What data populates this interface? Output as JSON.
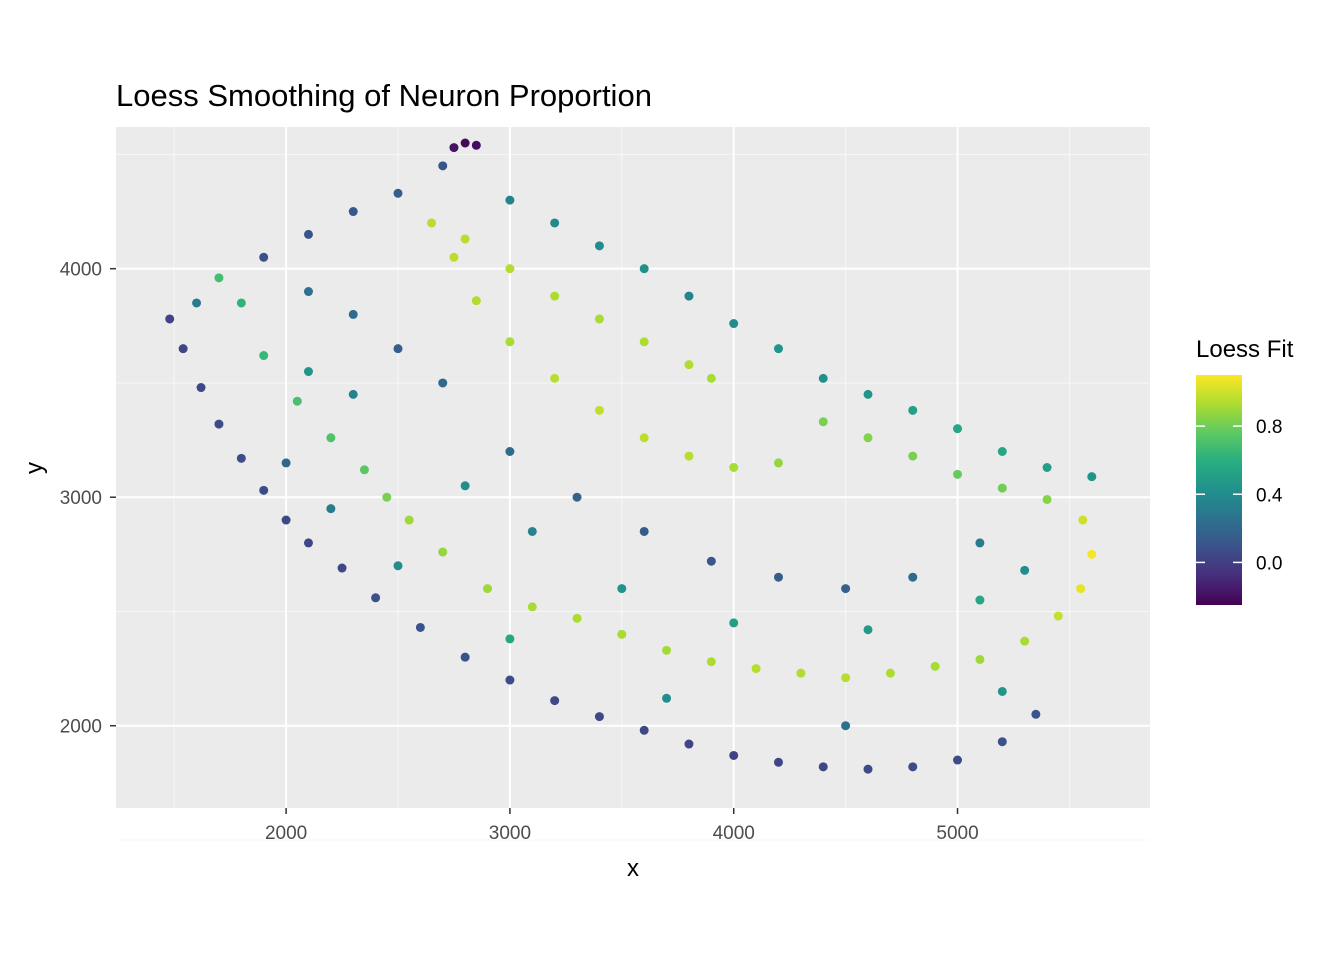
{
  "chart_data": {
    "type": "scatter",
    "title": "Loess Smoothing of Neuron Proportion",
    "xlabel": "x",
    "ylabel": "y",
    "xlim": [
      1240,
      5860
    ],
    "ylim": [
      1640,
      4620
    ],
    "x_ticks": [
      2000,
      3000,
      4000,
      5000
    ],
    "y_ticks": [
      2000,
      3000,
      4000
    ],
    "x_tick_labels": [
      "2000",
      "3000",
      "4000",
      "5000"
    ],
    "y_tick_labels": [
      "2000",
      "3000",
      "4000"
    ],
    "grid": true,
    "panel_background": "#ebebeb",
    "legend": {
      "title": "Loess Fit",
      "position": "right",
      "colormap": "viridis",
      "range": [
        -0.25,
        1.1
      ],
      "ticks": [
        0.0,
        0.4,
        0.8
      ],
      "tick_labels": [
        "0.0",
        "0.4",
        "0.8"
      ]
    },
    "series": [
      {
        "description": "approximate cell points (x, y, loess fit)",
        "points": [
          [
            1480,
            3780,
            0.02
          ],
          [
            1540,
            3650,
            0.03
          ],
          [
            1620,
            3480,
            0.04
          ],
          [
            1700,
            3320,
            0.06
          ],
          [
            1800,
            3170,
            0.07
          ],
          [
            1900,
            3030,
            0.06
          ],
          [
            2000,
            2900,
            0.05
          ],
          [
            2100,
            2800,
            0.03
          ],
          [
            2250,
            2690,
            0.04
          ],
          [
            2400,
            2560,
            0.08
          ],
          [
            2600,
            2430,
            0.1
          ],
          [
            2800,
            2300,
            0.08
          ],
          [
            3000,
            2200,
            0.06
          ],
          [
            3200,
            2110,
            0.05
          ],
          [
            3400,
            2040,
            0.05
          ],
          [
            3600,
            1980,
            0.04
          ],
          [
            3800,
            1920,
            0.03
          ],
          [
            4000,
            1870,
            0.02
          ],
          [
            4200,
            1840,
            0.03
          ],
          [
            4400,
            1820,
            0.04
          ],
          [
            4600,
            1810,
            0.05
          ],
          [
            4800,
            1820,
            0.06
          ],
          [
            5000,
            1850,
            0.07
          ],
          [
            5200,
            1930,
            0.08
          ],
          [
            5350,
            2050,
            0.1
          ],
          [
            1600,
            3850,
            0.3
          ],
          [
            1700,
            3960,
            0.68
          ],
          [
            1800,
            3850,
            0.62
          ],
          [
            1900,
            3620,
            0.65
          ],
          [
            2050,
            3420,
            0.7
          ],
          [
            2200,
            3260,
            0.72
          ],
          [
            2350,
            3120,
            0.75
          ],
          [
            2450,
            3000,
            0.82
          ],
          [
            2550,
            2900,
            0.9
          ],
          [
            2700,
            2760,
            0.88
          ],
          [
            2900,
            2600,
            0.9
          ],
          [
            3100,
            2520,
            0.92
          ],
          [
            3300,
            2470,
            0.93
          ],
          [
            3500,
            2400,
            0.92
          ],
          [
            3700,
            2330,
            0.91
          ],
          [
            3900,
            2280,
            0.93
          ],
          [
            4100,
            2250,
            0.95
          ],
          [
            4300,
            2230,
            0.94
          ],
          [
            4500,
            2210,
            0.95
          ],
          [
            4700,
            2230,
            0.93
          ],
          [
            4900,
            2260,
            0.92
          ],
          [
            5100,
            2290,
            0.9
          ],
          [
            5300,
            2370,
            0.92
          ],
          [
            5450,
            2480,
            0.98
          ],
          [
            5550,
            2600,
            1.05
          ],
          [
            5600,
            2750,
            1.08
          ],
          [
            5560,
            2900,
            1.0
          ],
          [
            5400,
            2990,
            0.85
          ],
          [
            5200,
            3040,
            0.8
          ],
          [
            5000,
            3100,
            0.78
          ],
          [
            4800,
            3180,
            0.82
          ],
          [
            4600,
            3260,
            0.84
          ],
          [
            4400,
            3330,
            0.82
          ],
          [
            4200,
            3150,
            0.88
          ],
          [
            4000,
            3130,
            0.92
          ],
          [
            3800,
            3180,
            0.95
          ],
          [
            3600,
            3260,
            0.96
          ],
          [
            3400,
            3380,
            0.97
          ],
          [
            3200,
            3520,
            0.95
          ],
          [
            3000,
            3680,
            0.92
          ],
          [
            2850,
            3860,
            0.94
          ],
          [
            2750,
            4050,
            0.96
          ],
          [
            2650,
            4200,
            0.95
          ],
          [
            2800,
            4130,
            0.95
          ],
          [
            3000,
            4000,
            0.94
          ],
          [
            3200,
            3880,
            0.93
          ],
          [
            3400,
            3780,
            0.92
          ],
          [
            3600,
            3680,
            0.93
          ],
          [
            3800,
            3580,
            0.94
          ],
          [
            3900,
            3520,
            0.92
          ],
          [
            1900,
            4050,
            0.08
          ],
          [
            2100,
            4150,
            0.1
          ],
          [
            2300,
            4250,
            0.12
          ],
          [
            2500,
            4330,
            0.15
          ],
          [
            2700,
            4450,
            0.1
          ],
          [
            2850,
            4540,
            -0.2
          ],
          [
            2800,
            4550,
            -0.22
          ],
          [
            2750,
            4530,
            -0.18
          ],
          [
            3000,
            4300,
            0.35
          ],
          [
            3200,
            4200,
            0.38
          ],
          [
            3400,
            4100,
            0.4
          ],
          [
            3600,
            4000,
            0.42
          ],
          [
            3800,
            3880,
            0.35
          ],
          [
            4000,
            3760,
            0.4
          ],
          [
            4200,
            3650,
            0.45
          ],
          [
            4400,
            3520,
            0.42
          ],
          [
            4600,
            3450,
            0.45
          ],
          [
            4800,
            3380,
            0.5
          ],
          [
            5000,
            3300,
            0.55
          ],
          [
            5200,
            3200,
            0.55
          ],
          [
            5400,
            3130,
            0.5
          ],
          [
            5600,
            3090,
            0.45
          ],
          [
            2100,
            3900,
            0.25
          ],
          [
            2300,
            3800,
            0.22
          ],
          [
            2500,
            3650,
            0.15
          ],
          [
            2700,
            3500,
            0.2
          ],
          [
            2300,
            3450,
            0.35
          ],
          [
            2100,
            3550,
            0.45
          ],
          [
            3000,
            3200,
            0.22
          ],
          [
            3300,
            3000,
            0.18
          ],
          [
            3600,
            2850,
            0.14
          ],
          [
            3900,
            2720,
            0.12
          ],
          [
            4200,
            2650,
            0.14
          ],
          [
            4500,
            2600,
            0.16
          ],
          [
            4800,
            2650,
            0.22
          ],
          [
            5100,
            2800,
            0.3
          ],
          [
            5300,
            2680,
            0.4
          ],
          [
            3500,
            2600,
            0.45
          ],
          [
            3100,
            2850,
            0.35
          ],
          [
            2800,
            3050,
            0.4
          ],
          [
            4000,
            2450,
            0.5
          ],
          [
            4600,
            2420,
            0.48
          ],
          [
            5100,
            2550,
            0.55
          ],
          [
            2000,
            3150,
            0.2
          ],
          [
            2200,
            2950,
            0.3
          ],
          [
            2500,
            2700,
            0.4
          ],
          [
            3000,
            2380,
            0.55
          ],
          [
            3700,
            2120,
            0.4
          ],
          [
            4500,
            2000,
            0.25
          ],
          [
            5200,
            2150,
            0.45
          ]
        ]
      }
    ]
  }
}
